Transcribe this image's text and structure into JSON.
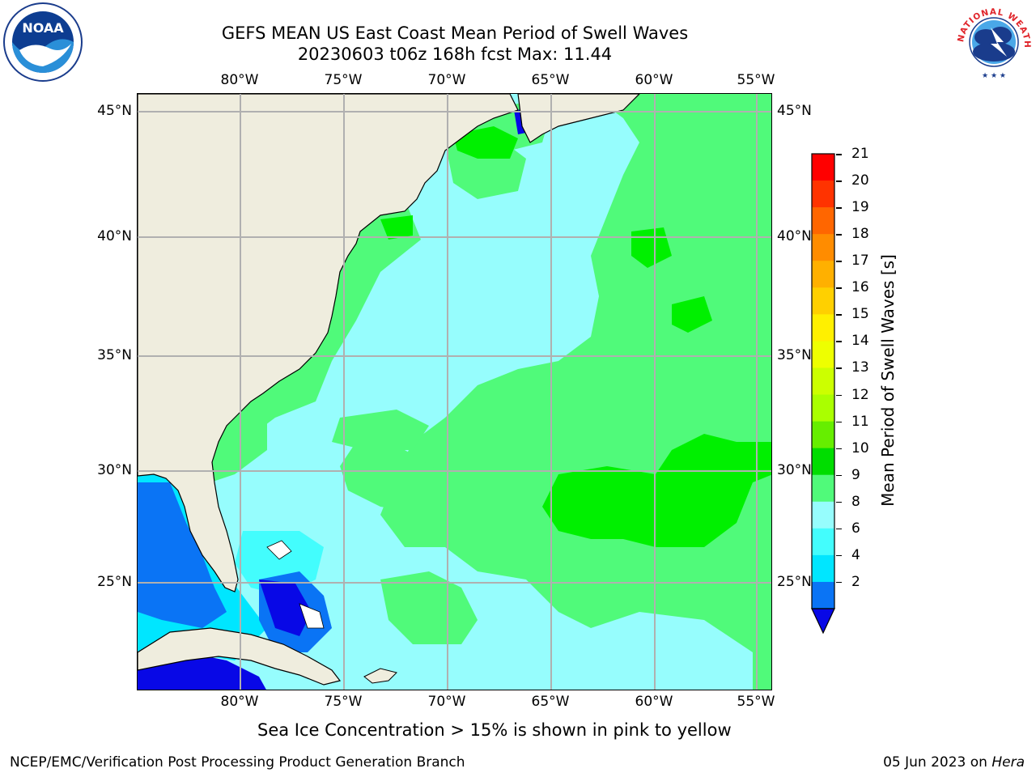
{
  "header": {
    "title": "GEFS MEAN US East Coast Mean Period of Swell Waves",
    "subtitle": "20230603 t06z 168h fcst   Max: 11.44"
  },
  "logos": {
    "noaa_text": "NOAA",
    "nws_text": "NATIONAL WEATHER SERVICE"
  },
  "map": {
    "lon_labels": [
      "80°W",
      "75°W",
      "70°W",
      "65°W",
      "60°W",
      "55°W"
    ],
    "lat_labels": [
      "45°N",
      "40°N",
      "35°N",
      "30°N",
      "25°N"
    ],
    "lon_range": [
      -85,
      -54.3
    ],
    "lat_range": [
      20,
      46
    ],
    "grid": true,
    "colors": {
      "land": "#efedde",
      "ocean_8_9": "#96fdfd",
      "ocean_9_10": "#50fa7a",
      "ocean_10_11": "#00f000",
      "ocean_6_8": "#43fdfd",
      "ocean_4_6": "#00e6ff",
      "ocean_2_4": "#0a74f5",
      "ocean_lt2": "#0808e6",
      "gridline": "#b0b0b0"
    }
  },
  "colorbar": {
    "label": "Mean Period of Swell Waves [s]",
    "ticks": [
      "21",
      "20",
      "19",
      "18",
      "17",
      "16",
      "15",
      "14",
      "13",
      "12",
      "11",
      "10",
      "9",
      "8",
      "6",
      "4",
      "2"
    ],
    "colors": [
      "#ff0000",
      "#ff3300",
      "#ff6600",
      "#ff8c00",
      "#ffb000",
      "#ffd000",
      "#fff000",
      "#eeff00",
      "#ccff00",
      "#aaff00",
      "#66ee00",
      "#00dd00",
      "#50fa7a",
      "#96fdfd",
      "#43fdfd",
      "#00e6ff",
      "#0a74f5"
    ],
    "under_color": "#0808e6"
  },
  "caption": "Sea Ice Concentration > 15% is shown in pink to yellow",
  "footer": {
    "left": "NCEP/EMC/Verification Post Processing Product Generation Branch",
    "right_prefix": "05 Jun 2023 on ",
    "right_host": "Hera"
  }
}
